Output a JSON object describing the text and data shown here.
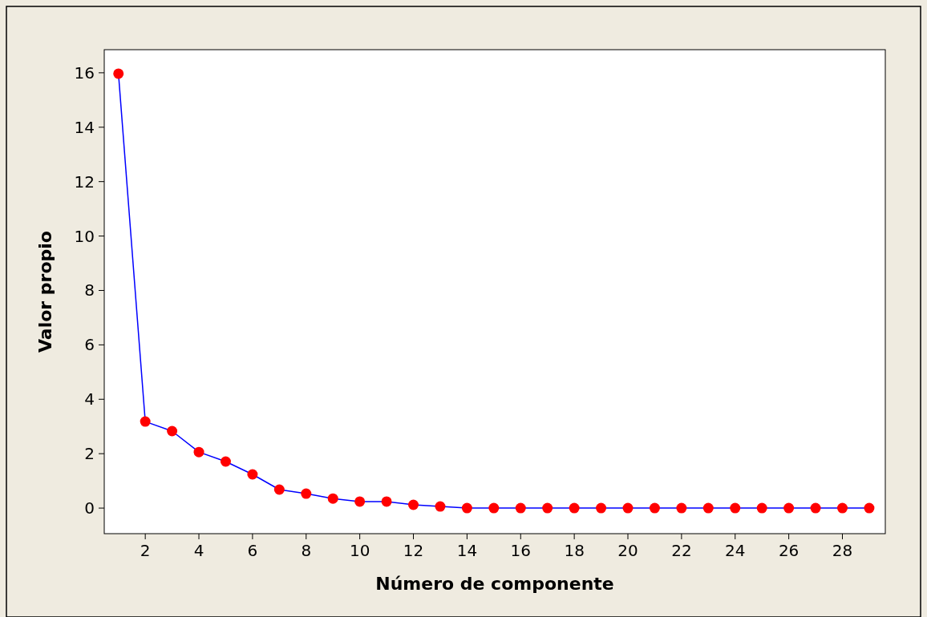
{
  "chart_data": {
    "type": "line",
    "xlabel": "Número de componente",
    "ylabel": "Valor propio",
    "x": [
      1,
      2,
      3,
      4,
      5,
      6,
      7,
      8,
      9,
      10,
      11,
      12,
      13,
      14,
      15,
      16,
      17,
      18,
      19,
      20,
      21,
      22,
      23,
      24,
      25,
      26,
      27,
      28,
      29
    ],
    "series": [
      {
        "color": "#0000ff",
        "colors": [
          "#ff0000",
          "#ff0000",
          "#ff0000",
          "#ff0000",
          "#ff0000",
          "#ff0000",
          "#ff0000",
          "#ff0000",
          "#ff0000",
          "#ff0000",
          "#ff0000",
          "#ff0000",
          "#ff0000",
          "#ff0000",
          "#ff0000",
          "#ff0000",
          "#ff0000",
          "#ff0000",
          "#ff0000",
          "#ff0000",
          "#ff0000",
          "#ff0000",
          "#ff0000",
          "#ff0000",
          "#ff0000",
          "#ff0000",
          "#ff0000",
          "#ff0000",
          "#ff0000"
        ],
        "values": [
          15.97,
          3.18,
          2.83,
          2.06,
          1.71,
          1.24,
          0.68,
          0.53,
          0.35,
          0.24,
          0.24,
          0.12,
          0.06,
          0,
          0,
          0,
          0,
          0,
          0,
          0,
          0,
          0,
          0,
          0,
          0,
          0,
          0,
          0,
          0
        ]
      }
    ],
    "marker": "circle",
    "line_style": "solid",
    "xlim": [
      0.47,
      29.6
    ],
    "xticks": [
      2,
      4,
      6,
      8,
      10,
      12,
      14,
      16,
      18,
      20,
      22,
      24,
      26,
      28
    ],
    "ylim": [
      -0.94,
      16.85
    ],
    "yticks": [
      0,
      2,
      4,
      6,
      8,
      10,
      12,
      14,
      16
    ],
    "grid": false
  }
}
